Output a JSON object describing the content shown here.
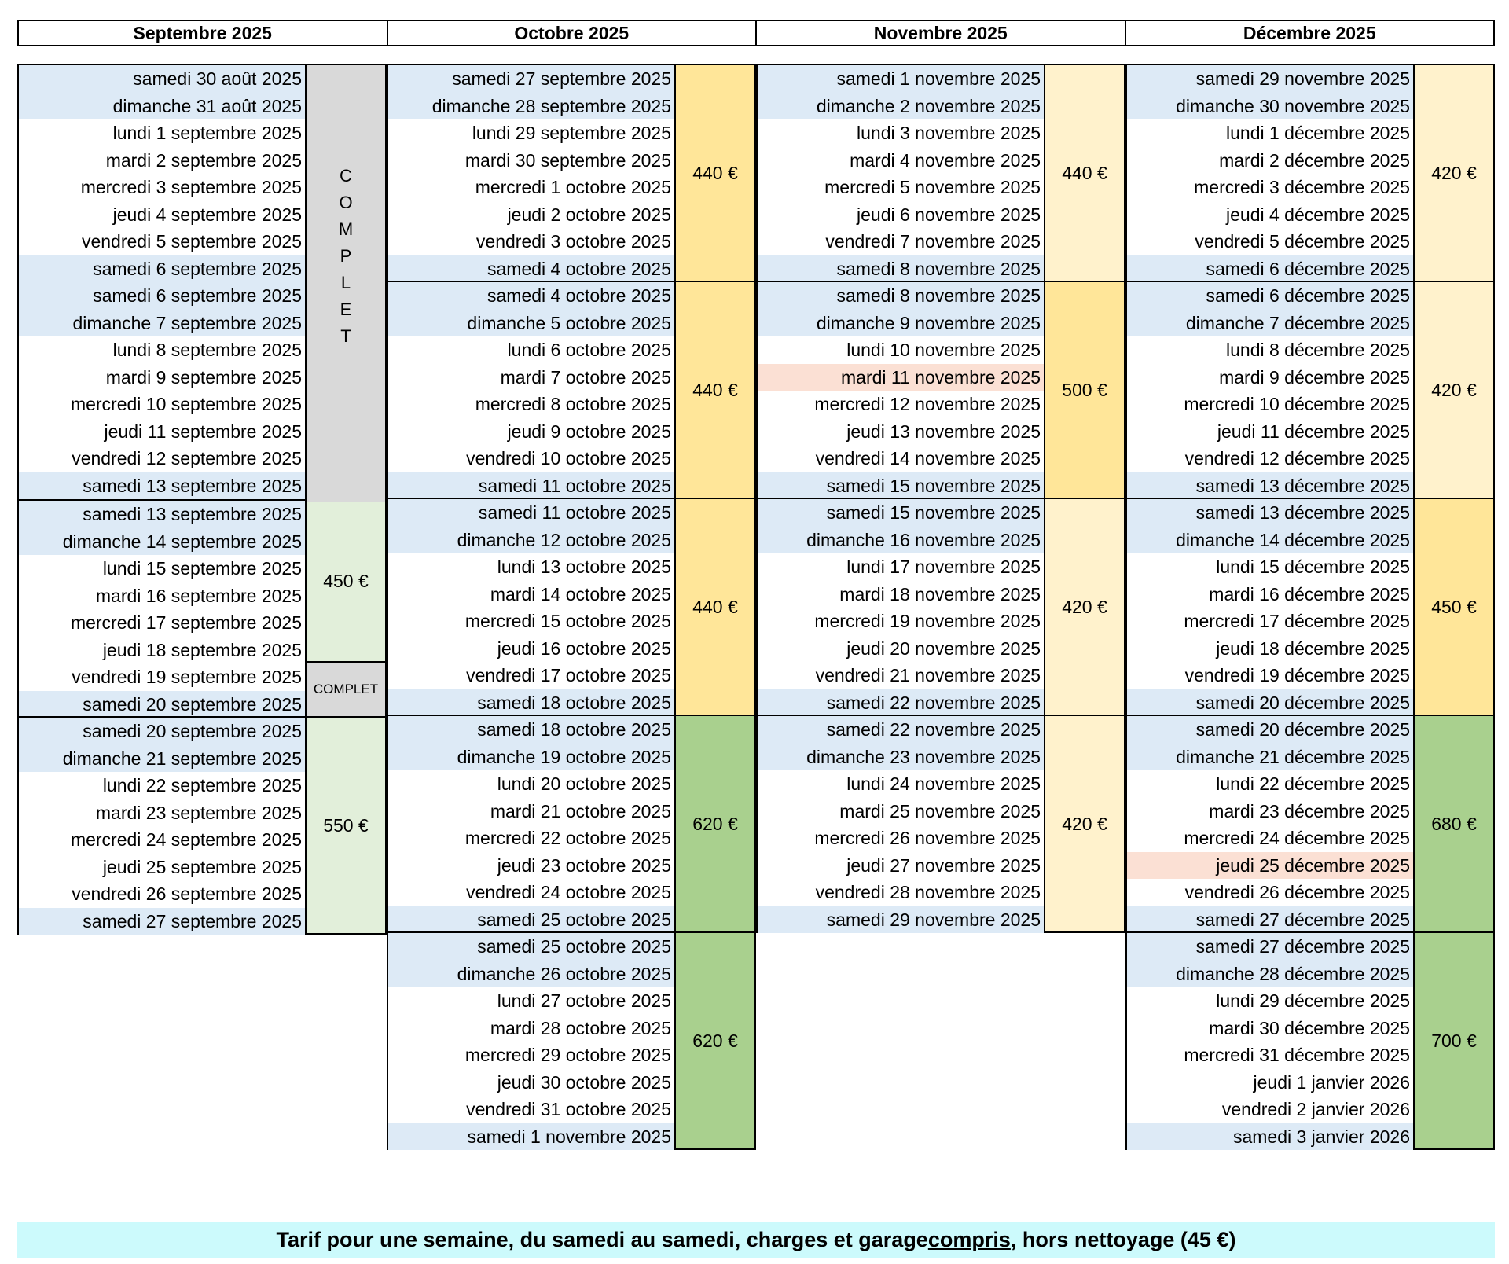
{
  "months": [
    "Septembre 2025",
    "Octobre 2025",
    "Novembre 2025",
    "Décembre 2025"
  ],
  "colors": {
    "weekend": "#ddeaf6",
    "holiday": "#fbe0d4",
    "complet": "#d9d9d9",
    "light_green": "#e2efda",
    "green": "#a9d08e",
    "yellow": "#ffe699",
    "light_yellow": "#fff2cc",
    "footer": "#ccfafc"
  },
  "columns": [
    {
      "weeks": [
        {
          "days": [
            "samedi 30 août 2025",
            "dimanche 31 août 2025",
            "lundi 1 septembre 2025",
            "mardi 2 septembre 2025",
            "mercredi 3 septembre 2025",
            "jeudi 4 septembre 2025",
            "vendredi 5 septembre 2025",
            "samedi 6 septembre 2025"
          ],
          "price": "",
          "color": "#d9d9d9"
        },
        {
          "days": [
            "samedi 6 septembre 2025",
            "dimanche 7 septembre 2025",
            "lundi 8 septembre 2025",
            "mardi 9 septembre 2025",
            "mercredi 10 septembre 2025",
            "jeudi 11 septembre 2025",
            "vendredi 12 septembre 2025",
            "samedi 13 septembre 2025"
          ],
          "price": "",
          "color": "#d9d9d9"
        },
        {
          "days": [
            "samedi 13 septembre 2025",
            "dimanche 14 septembre 2025",
            "lundi 15 septembre 2025",
            "mardi 16 septembre 2025",
            "mercredi 17 septembre 2025",
            "jeudi 18 septembre 2025",
            "vendredi 19 septembre 2025",
            "samedi 20 septembre 2025"
          ],
          "price": "450 €",
          "color": "#e2efda",
          "sub_label": "COMPLET"
        },
        {
          "days": [
            "samedi 20 septembre 2025",
            "dimanche 21 septembre 2025",
            "lundi 22 septembre 2025",
            "mardi 23 septembre 2025",
            "mercredi 24 septembre 2025",
            "jeudi 25 septembre 2025",
            "vendredi 26 septembre 2025",
            "samedi 27 septembre 2025"
          ],
          "price": "550 €",
          "color": "#e2efda"
        }
      ]
    },
    {
      "weeks": [
        {
          "days": [
            "samedi 27 septembre 2025",
            "dimanche 28 septembre 2025",
            "lundi 29 septembre 2025",
            "mardi 30 septembre 2025",
            "mercredi 1 octobre 2025",
            "jeudi 2 octobre 2025",
            "vendredi 3 octobre 2025",
            "samedi 4 octobre 2025"
          ],
          "price": "440 €",
          "color": "#ffe699"
        },
        {
          "days": [
            "samedi 4 octobre 2025",
            "dimanche 5 octobre 2025",
            "lundi 6 octobre 2025",
            "mardi 7 octobre 2025",
            "mercredi 8 octobre 2025",
            "jeudi 9 octobre 2025",
            "vendredi 10 octobre 2025",
            "samedi 11 octobre 2025"
          ],
          "price": "440 €",
          "color": "#ffe699"
        },
        {
          "days": [
            "samedi 11 octobre 2025",
            "dimanche 12 octobre 2025",
            "lundi 13 octobre 2025",
            "mardi 14 octobre 2025",
            "mercredi 15 octobre 2025",
            "jeudi 16 octobre 2025",
            "vendredi 17 octobre 2025",
            "samedi 18 octobre 2025"
          ],
          "price": "440 €",
          "color": "#ffe699"
        },
        {
          "days": [
            "samedi 18 octobre 2025",
            "dimanche 19 octobre 2025",
            "lundi 20 octobre 2025",
            "mardi 21 octobre 2025",
            "mercredi 22 octobre 2025",
            "jeudi 23 octobre 2025",
            "vendredi 24 octobre 2025",
            "samedi 25 octobre 2025"
          ],
          "price": "620 €",
          "color": "#a9d08e"
        },
        {
          "days": [
            "samedi 25 octobre 2025",
            "dimanche 26 octobre 2025",
            "lundi 27 octobre 2025",
            "mardi 28 octobre 2025",
            "mercredi 29 octobre 2025",
            "jeudi 30 octobre 2025",
            "vendredi 31 octobre 2025",
            "samedi 1 novembre 2025"
          ],
          "price": "620 €",
          "color": "#a9d08e"
        }
      ]
    },
    {
      "weeks": [
        {
          "days": [
            "samedi 1 novembre 2025",
            "dimanche 2 novembre 2025",
            "lundi 3 novembre 2025",
            "mardi 4 novembre 2025",
            "mercredi 5 novembre 2025",
            "jeudi 6 novembre 2025",
            "vendredi 7 novembre 2025",
            "samedi 8 novembre 2025"
          ],
          "price": "440 €",
          "color": "#fff2cc"
        },
        {
          "days": [
            "samedi 8 novembre 2025",
            "dimanche 9 novembre 2025",
            "lundi 10 novembre 2025",
            "mardi 11 novembre 2025",
            "mercredi 12 novembre 2025",
            "jeudi 13 novembre 2025",
            "vendredi 14 novembre 2025",
            "samedi 15 novembre 2025"
          ],
          "price": "500 €",
          "color": "#ffe699",
          "holiday": 3
        },
        {
          "days": [
            "samedi 15 novembre 2025",
            "dimanche 16 novembre 2025",
            "lundi 17 novembre 2025",
            "mardi 18 novembre 2025",
            "mercredi 19 novembre 2025",
            "jeudi 20 novembre 2025",
            "vendredi 21 novembre 2025",
            "samedi 22 novembre 2025"
          ],
          "price": "420 €",
          "color": "#fff2cc"
        },
        {
          "days": [
            "samedi 22 novembre 2025",
            "dimanche 23 novembre 2025",
            "lundi 24 novembre 2025",
            "mardi 25 novembre 2025",
            "mercredi 26 novembre 2025",
            "jeudi 27 novembre 2025",
            "vendredi 28 novembre 2025",
            "samedi 29 novembre 2025"
          ],
          "price": "420 €",
          "color": "#fff2cc"
        }
      ]
    },
    {
      "weeks": [
        {
          "days": [
            "samedi 29 novembre 2025",
            "dimanche 30 novembre 2025",
            "lundi 1 décembre 2025",
            "mardi 2 décembre 2025",
            "mercredi 3 décembre 2025",
            "jeudi 4 décembre 2025",
            "vendredi 5 décembre 2025",
            "samedi 6 décembre 2025"
          ],
          "price": "420 €",
          "color": "#fff2cc"
        },
        {
          "days": [
            "samedi 6 décembre 2025",
            "dimanche 7 décembre 2025",
            "lundi 8 décembre 2025",
            "mardi 9 décembre 2025",
            "mercredi 10 décembre 2025",
            "jeudi 11 décembre 2025",
            "vendredi 12 décembre 2025",
            "samedi 13 décembre 2025"
          ],
          "price": "420 €",
          "color": "#fff2cc"
        },
        {
          "days": [
            "samedi 13 décembre 2025",
            "dimanche 14 décembre 2025",
            "lundi 15 décembre 2025",
            "mardi 16 décembre 2025",
            "mercredi 17 décembre 2025",
            "jeudi 18 décembre 2025",
            "vendredi 19 décembre 2025",
            "samedi 20 décembre 2025"
          ],
          "price": "450 €",
          "color": "#ffe699"
        },
        {
          "days": [
            "samedi 20 décembre 2025",
            "dimanche 21 décembre 2025",
            "lundi 22 décembre 2025",
            "mardi 23 décembre 2025",
            "mercredi 24 décembre 2025",
            "jeudi 25 décembre 2025",
            "vendredi 26 décembre 2025",
            "samedi 27 décembre 2025"
          ],
          "price": "680 €",
          "color": "#a9d08e",
          "holiday": 5
        },
        {
          "days": [
            "samedi 27 décembre 2025",
            "dimanche 28 décembre 2025",
            "lundi 29 décembre 2025",
            "mardi 30 décembre 2025",
            "mercredi 31 décembre 2025",
            "jeudi 1 janvier 2026",
            "vendredi 2 janvier 2026",
            "samedi 3 janvier 2026"
          ],
          "price": "700 €",
          "color": "#a9d08e"
        }
      ]
    }
  ],
  "complet_vertical": [
    "C",
    "O",
    "M",
    "P",
    "L",
    "E",
    "T"
  ],
  "footer": {
    "before": "Tarif pour une semaine, du samedi au samedi, charges et garage ",
    "underlined": "compris",
    "after": ", hors nettoyage (45 €)"
  }
}
